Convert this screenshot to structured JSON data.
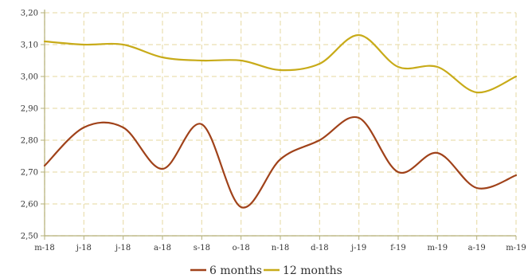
{
  "chart_data": {
    "type": "line",
    "categories": [
      "m-18",
      "j-18",
      "j-18",
      "a-18",
      "s-18",
      "o-18",
      "n-18",
      "d-18",
      "j-19",
      "f-19",
      "m-19",
      "a-19",
      "m-19"
    ],
    "series": [
      {
        "name": "6 months",
        "color": "#a0421a",
        "values": [
          2.72,
          2.84,
          2.84,
          2.71,
          2.85,
          2.59,
          2.74,
          2.8,
          2.87,
          2.7,
          2.76,
          2.65,
          2.69
        ]
      },
      {
        "name": "12 months",
        "color": "#c8ab19",
        "values": [
          3.11,
          3.1,
          3.1,
          3.06,
          3.05,
          3.05,
          3.02,
          3.04,
          3.13,
          3.03,
          3.03,
          2.95,
          3.0
        ]
      }
    ],
    "yticks": [
      "2,50",
      "2,60",
      "2,70",
      "2,80",
      "2,90",
      "3,00",
      "3,10",
      "3,20"
    ],
    "ylim": [
      2.5,
      3.2
    ],
    "grid": true,
    "legend": "bottom-center",
    "colors": {
      "grid": "#eadfb0",
      "axis": "#b5b07a"
    }
  }
}
